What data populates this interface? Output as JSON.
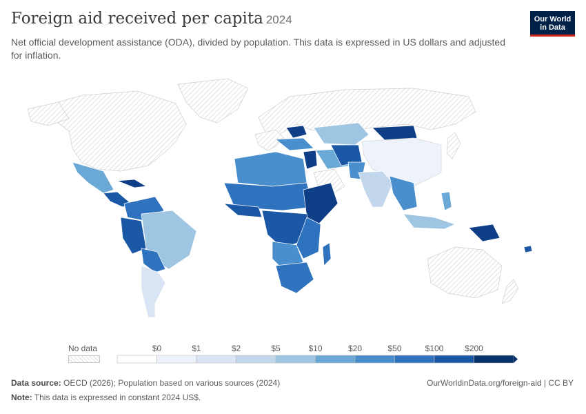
{
  "header": {
    "title": "Foreign aid received per capita",
    "year": "2024",
    "subtitle": "Net official development assistance (ODA), divided by population. This data is expressed in US dollars and adjusted for inflation."
  },
  "logo": {
    "line1": "Our World",
    "line2": "in Data"
  },
  "legend": {
    "no_data_label": "No data",
    "bins": [
      {
        "label": "$0",
        "color": "#eef3fb"
      },
      {
        "label": "$1",
        "color": "#d9e5f4"
      },
      {
        "label": "$2",
        "color": "#c3d7ec"
      },
      {
        "label": "$5",
        "color": "#9ec5e2"
      },
      {
        "label": "$10",
        "color": "#6aa8d6"
      },
      {
        "label": "$20",
        "color": "#4a8fcd"
      },
      {
        "label": "$50",
        "color": "#2f72bd"
      },
      {
        "label": "$100",
        "color": "#1a58a6"
      },
      {
        "label": "$200",
        "color": "#0e3f86"
      }
    ],
    "start_color": "#ffffff",
    "end_color": "#08306b"
  },
  "footer": {
    "source_label": "Data source:",
    "source_text": "OECD (2026); Population based on various sources (2024)",
    "note_label": "Note:",
    "note_text": "This data is expressed in constant 2024 US$.",
    "url": "OurWorldinData.org/foreign-aid | CC BY"
  },
  "colors": {
    "nodata": "#ececec",
    "very_low": "#eef3fb",
    "low": "#d9e5f4",
    "light": "#9ec5e2",
    "mid": "#6aa8d6",
    "medium": "#4a8fcd",
    "high": "#2f72bd",
    "very_high": "#1a58a6",
    "top": "#0e3f86"
  }
}
